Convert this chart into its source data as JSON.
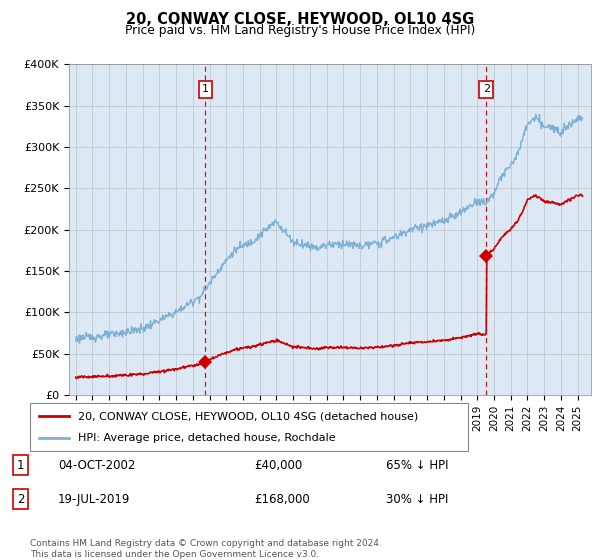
{
  "title": "20, CONWAY CLOSE, HEYWOOD, OL10 4SG",
  "subtitle": "Price paid vs. HM Land Registry's House Price Index (HPI)",
  "hpi_color": "#7eb0d5",
  "sale_color": "#cc0000",
  "plot_bg_color": "#dce9f5",
  "ylim": [
    0,
    400000
  ],
  "yticks": [
    0,
    50000,
    100000,
    150000,
    200000,
    250000,
    300000,
    350000,
    400000
  ],
  "ytick_labels": [
    "£0",
    "£50K",
    "£100K",
    "£150K",
    "£200K",
    "£250K",
    "£300K",
    "£350K",
    "£400K"
  ],
  "sale_points": [
    {
      "date": 2002.75,
      "price": 40000,
      "label": "1"
    },
    {
      "date": 2019.54,
      "price": 168000,
      "label": "2"
    }
  ],
  "vline_dates": [
    2002.75,
    2019.54
  ],
  "legend_line1": "20, CONWAY CLOSE, HEYWOOD, OL10 4SG (detached house)",
  "legend_line2": "HPI: Average price, detached house, Rochdale",
  "footer": "Contains HM Land Registry data © Crown copyright and database right 2024.\nThis data is licensed under the Open Government Licence v3.0."
}
